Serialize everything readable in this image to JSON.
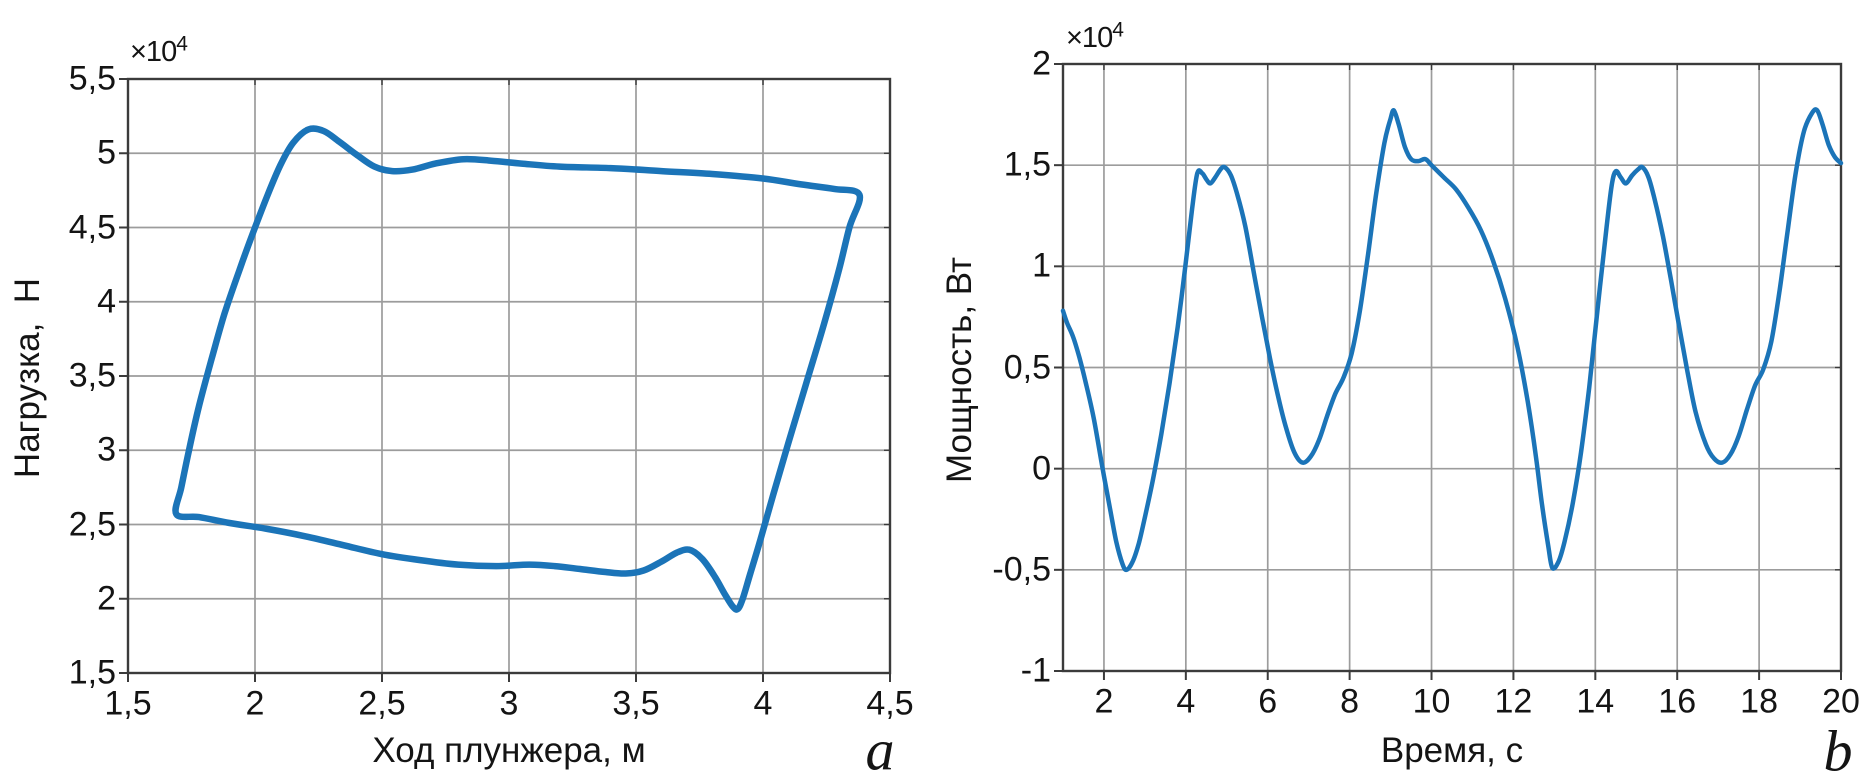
{
  "colors": {
    "curve": "#1b74b8",
    "grid": "#9c9c9c",
    "frame": "#3b3b3b",
    "text": "#141414",
    "background": "#ffffff"
  },
  "panels": [
    {
      "id": "a",
      "panel_label": "a",
      "xlabel": "Ход плунжера, м",
      "ylabel": "Нагрузка,  Н",
      "exp_mult": "×10",
      "exp_power": "4",
      "x_tick_labels": [
        "1,5",
        "2",
        "2,5",
        "3",
        "3,5",
        "4",
        "4,5"
      ],
      "y_tick_labels": [
        "1,5",
        "2",
        "2,5",
        "3",
        "3,5",
        "4",
        "4,5",
        "5",
        "5,5"
      ]
    },
    {
      "id": "b",
      "panel_label": "b",
      "xlabel": "Время, с",
      "ylabel": "Мощность, Вт",
      "exp_mult": "×10",
      "exp_power": "4",
      "x_tick_labels": [
        "2",
        "4",
        "6",
        "8",
        "10",
        "12",
        "14",
        "16",
        "18",
        "20"
      ],
      "y_tick_labels": [
        "-1",
        "-0,5",
        "0",
        "0,5",
        "1",
        "1,5",
        "2"
      ]
    }
  ],
  "chart_data": [
    {
      "type": "line",
      "id": "a",
      "title": "",
      "xlabel": "Ход плунжера, м",
      "ylabel": "Нагрузка, Н",
      "y_unit_multiplier": 10000,
      "x_range": [
        1.5,
        4.5
      ],
      "y_range": [
        1.5,
        5.5
      ],
      "x_tick_values": [
        1.5,
        2,
        2.5,
        3,
        3.5,
        4,
        4.5
      ],
      "y_tick_values": [
        1.5,
        2,
        2.5,
        3,
        3.5,
        4,
        4.5,
        5,
        5.5
      ],
      "grid": true,
      "legend": false,
      "series": [
        {
          "name": "load-vs-stroke-loop",
          "closed": true,
          "stroke_width": 6.5,
          "points": [
            [
              1.69,
              2.57
            ],
            [
              1.71,
              2.75
            ],
            [
              1.74,
              3.0
            ],
            [
              1.78,
              3.3
            ],
            [
              1.83,
              3.62
            ],
            [
              1.88,
              3.92
            ],
            [
              1.94,
              4.22
            ],
            [
              2.0,
              4.5
            ],
            [
              2.05,
              4.72
            ],
            [
              2.1,
              4.92
            ],
            [
              2.15,
              5.07
            ],
            [
              2.21,
              5.16
            ],
            [
              2.27,
              5.15
            ],
            [
              2.33,
              5.08
            ],
            [
              2.4,
              4.99
            ],
            [
              2.47,
              4.91
            ],
            [
              2.54,
              4.88
            ],
            [
              2.62,
              4.89
            ],
            [
              2.71,
              4.93
            ],
            [
              2.82,
              4.96
            ],
            [
              2.93,
              4.95
            ],
            [
              3.05,
              4.93
            ],
            [
              3.2,
              4.91
            ],
            [
              3.4,
              4.9
            ],
            [
              3.6,
              4.88
            ],
            [
              3.8,
              4.86
            ],
            [
              4.0,
              4.83
            ],
            [
              4.15,
              4.79
            ],
            [
              4.28,
              4.76
            ],
            [
              4.38,
              4.72
            ],
            [
              4.34,
              4.5
            ],
            [
              4.3,
              4.22
            ],
            [
              4.24,
              3.85
            ],
            [
              4.17,
              3.45
            ],
            [
              4.1,
              3.05
            ],
            [
              4.04,
              2.7
            ],
            [
              3.99,
              2.4
            ],
            [
              3.95,
              2.17
            ],
            [
              3.92,
              2.0
            ],
            [
              3.9,
              1.93
            ],
            [
              3.88,
              1.95
            ],
            [
              3.85,
              2.03
            ],
            [
              3.81,
              2.15
            ],
            [
              3.76,
              2.27
            ],
            [
              3.71,
              2.33
            ],
            [
              3.66,
              2.31
            ],
            [
              3.6,
              2.25
            ],
            [
              3.53,
              2.19
            ],
            [
              3.46,
              2.17
            ],
            [
              3.38,
              2.18
            ],
            [
              3.28,
              2.2
            ],
            [
              3.18,
              2.22
            ],
            [
              3.08,
              2.23
            ],
            [
              2.95,
              2.22
            ],
            [
              2.8,
              2.23
            ],
            [
              2.65,
              2.26
            ],
            [
              2.5,
              2.3
            ],
            [
              2.35,
              2.36
            ],
            [
              2.2,
              2.42
            ],
            [
              2.05,
              2.47
            ],
            [
              1.9,
              2.51
            ],
            [
              1.78,
              2.55
            ]
          ]
        }
      ]
    },
    {
      "type": "line",
      "id": "b",
      "title": "",
      "xlabel": "Время, с",
      "ylabel": "Мощность, Вт",
      "y_unit_multiplier": 10000,
      "x_range": [
        1,
        20
      ],
      "y_range": [
        -1,
        2
      ],
      "x_tick_values": [
        2,
        4,
        6,
        8,
        10,
        12,
        14,
        16,
        18,
        20
      ],
      "y_tick_values": [
        -1,
        -0.5,
        0,
        0.5,
        1,
        1.5,
        2
      ],
      "grid": true,
      "legend": false,
      "series": [
        {
          "name": "power-vs-time",
          "closed": false,
          "stroke_width": 4.5,
          "points": [
            [
              1,
              0.78
            ],
            [
              1.1,
              0.72
            ],
            [
              1.25,
              0.65
            ],
            [
              1.4,
              0.55
            ],
            [
              1.55,
              0.43
            ],
            [
              1.75,
              0.25
            ],
            [
              1.95,
              0.02
            ],
            [
              2.15,
              -0.2
            ],
            [
              2.3,
              -0.36
            ],
            [
              2.45,
              -0.47
            ],
            [
              2.55,
              -0.5
            ],
            [
              2.7,
              -0.46
            ],
            [
              2.85,
              -0.37
            ],
            [
              3,
              -0.24
            ],
            [
              3.2,
              -0.05
            ],
            [
              3.4,
              0.17
            ],
            [
              3.6,
              0.42
            ],
            [
              3.8,
              0.7
            ],
            [
              4,
              1.02
            ],
            [
              4.15,
              1.28
            ],
            [
              4.28,
              1.46
            ],
            [
              4.4,
              1.46
            ],
            [
              4.5,
              1.43
            ],
            [
              4.6,
              1.41
            ],
            [
              4.72,
              1.44
            ],
            [
              4.85,
              1.48
            ],
            [
              4.95,
              1.49
            ],
            [
              5.1,
              1.45
            ],
            [
              5.25,
              1.36
            ],
            [
              5.45,
              1.2
            ],
            [
              5.65,
              0.98
            ],
            [
              5.85,
              0.76
            ],
            [
              6.05,
              0.55
            ],
            [
              6.25,
              0.36
            ],
            [
              6.45,
              0.2
            ],
            [
              6.65,
              0.08
            ],
            [
              6.85,
              0.03
            ],
            [
              7.05,
              0.06
            ],
            [
              7.25,
              0.14
            ],
            [
              7.45,
              0.26
            ],
            [
              7.65,
              0.37
            ],
            [
              7.85,
              0.45
            ],
            [
              8.05,
              0.57
            ],
            [
              8.25,
              0.78
            ],
            [
              8.45,
              1.06
            ],
            [
              8.65,
              1.36
            ],
            [
              8.85,
              1.61
            ],
            [
              9,
              1.73
            ],
            [
              9.08,
              1.77
            ],
            [
              9.2,
              1.7
            ],
            [
              9.35,
              1.59
            ],
            [
              9.5,
              1.53
            ],
            [
              9.68,
              1.52
            ],
            [
              9.85,
              1.53
            ],
            [
              10,
              1.5
            ],
            [
              10.3,
              1.44
            ],
            [
              10.6,
              1.38
            ],
            [
              10.9,
              1.29
            ],
            [
              11.2,
              1.18
            ],
            [
              11.5,
              1.03
            ],
            [
              11.8,
              0.84
            ],
            [
              12.1,
              0.6
            ],
            [
              12.35,
              0.33
            ],
            [
              12.55,
              0.06
            ],
            [
              12.7,
              -0.18
            ],
            [
              12.85,
              -0.38
            ],
            [
              12.95,
              -0.49
            ],
            [
              13.1,
              -0.46
            ],
            [
              13.25,
              -0.36
            ],
            [
              13.45,
              -0.17
            ],
            [
              13.65,
              0.08
            ],
            [
              13.85,
              0.4
            ],
            [
              14.05,
              0.78
            ],
            [
              14.25,
              1.15
            ],
            [
              14.4,
              1.4
            ],
            [
              14.5,
              1.47
            ],
            [
              14.62,
              1.44
            ],
            [
              14.75,
              1.41
            ],
            [
              14.9,
              1.45
            ],
            [
              15.05,
              1.48
            ],
            [
              15.15,
              1.49
            ],
            [
              15.3,
              1.44
            ],
            [
              15.45,
              1.33
            ],
            [
              15.65,
              1.15
            ],
            [
              15.85,
              0.93
            ],
            [
              16.05,
              0.7
            ],
            [
              16.25,
              0.48
            ],
            [
              16.45,
              0.28
            ],
            [
              16.7,
              0.12
            ],
            [
              16.9,
              0.05
            ],
            [
              17.1,
              0.03
            ],
            [
              17.3,
              0.07
            ],
            [
              17.5,
              0.16
            ],
            [
              17.7,
              0.29
            ],
            [
              17.9,
              0.41
            ],
            [
              18.1,
              0.49
            ],
            [
              18.3,
              0.63
            ],
            [
              18.5,
              0.88
            ],
            [
              18.7,
              1.18
            ],
            [
              18.9,
              1.47
            ],
            [
              19.1,
              1.67
            ],
            [
              19.3,
              1.76
            ],
            [
              19.42,
              1.77
            ],
            [
              19.55,
              1.7
            ],
            [
              19.7,
              1.6
            ],
            [
              19.85,
              1.54
            ],
            [
              20,
              1.51
            ]
          ]
        }
      ]
    }
  ]
}
